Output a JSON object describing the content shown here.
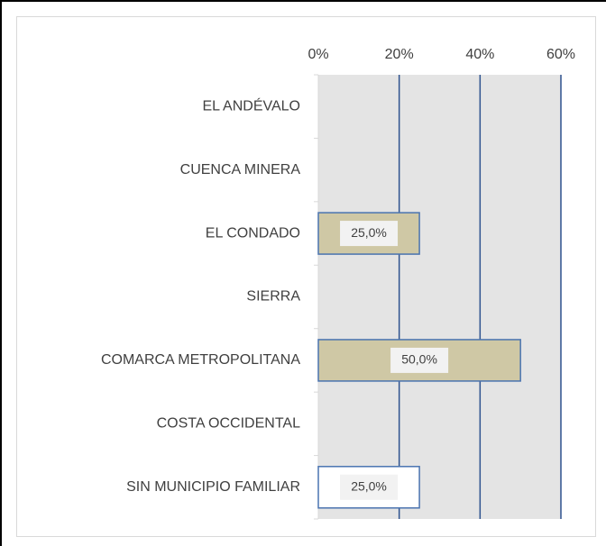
{
  "chart_data": {
    "type": "hbar",
    "categories": [
      "EL ANDÉVALO",
      "CUENCA MINERA",
      "EL CONDADO",
      "SIERRA",
      "COMARCA METROPOLITANA",
      "COSTA OCCIDENTAL",
      "SIN MUNICIPIO FAMILIAR"
    ],
    "values": [
      0,
      0,
      25,
      0,
      50,
      0,
      25
    ],
    "value_labels": [
      null,
      null,
      "25,0%",
      null,
      "50,0%",
      null,
      "25,0%"
    ],
    "colors": [
      "#cfc8a5",
      "#cfc8a5",
      "#cfc8a5",
      "#cfc8a5",
      "#cfc8a5",
      "#cfc8a5",
      "#ffffff"
    ],
    "xlim": [
      0,
      60
    ],
    "xticks": [
      {
        "value": 0,
        "label": "0%"
      },
      {
        "value": 20,
        "label": "20%"
      },
      {
        "value": 40,
        "label": "40%"
      },
      {
        "value": 60,
        "label": "60%"
      }
    ],
    "grid": true
  }
}
